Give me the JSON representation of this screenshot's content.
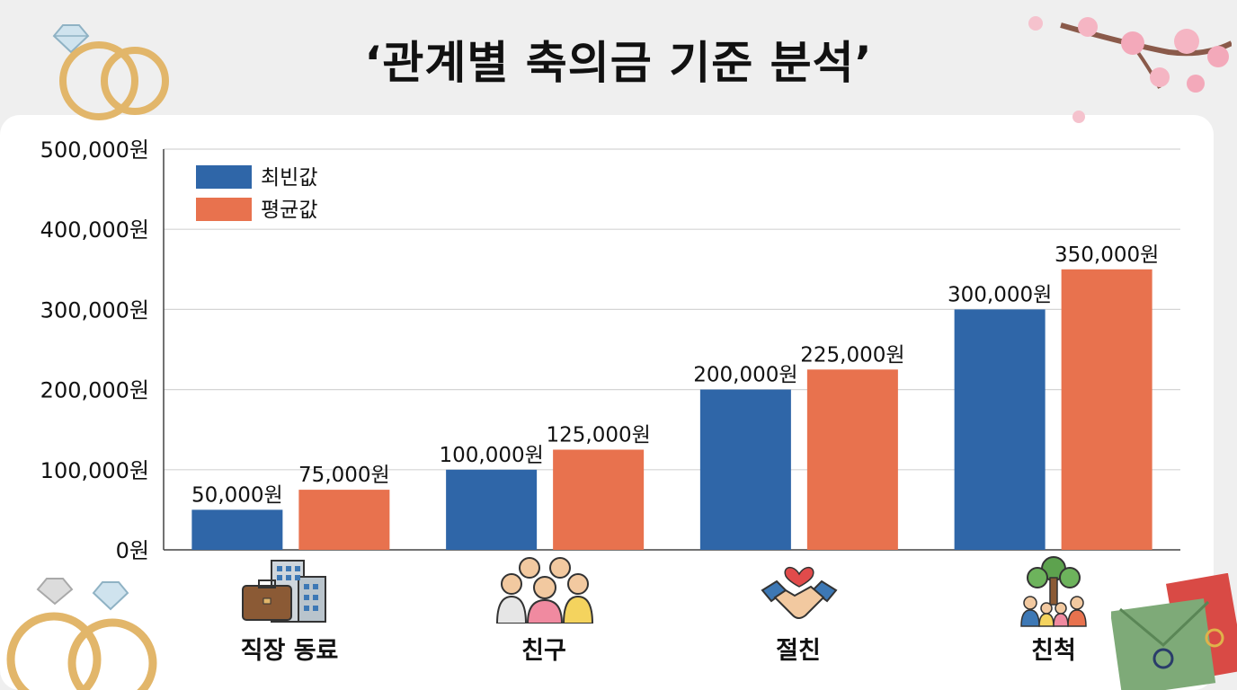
{
  "title": "‘관계별 축의금 기준 분석’",
  "colors": {
    "mode": "#2f66a8",
    "mean": "#e8724e",
    "grid": "#d5d5d5",
    "axis": "#444444",
    "text": "#111111"
  },
  "icons": {
    "office": "briefcase-building-icon",
    "friends": "group-of-friends-icon",
    "close_friend": "handshake-heart-icon",
    "relatives": "family-tree-icon"
  },
  "chart_data": {
    "type": "bar",
    "categories": [
      "직장 동료",
      "친구",
      "절친",
      "친척"
    ],
    "series": [
      {
        "name": "최빈값",
        "values": [
          50000,
          100000,
          200000,
          300000
        ],
        "labels": [
          "50,000원",
          "100,000원",
          "200,000원",
          "300,000원"
        ]
      },
      {
        "name": "평균값",
        "values": [
          75000,
          125000,
          225000,
          350000
        ],
        "labels": [
          "75,000원",
          "125,000원",
          "225,000원",
          "350,000원"
        ]
      }
    ],
    "ylim": [
      0,
      500000
    ],
    "yticks": [
      0,
      100000,
      200000,
      300000,
      400000,
      500000
    ],
    "ytick_labels": [
      "0원",
      "100,000원",
      "200,000원",
      "300,000원",
      "400,000원",
      "500,000원"
    ],
    "grid": true,
    "legend_position": "top-left"
  }
}
